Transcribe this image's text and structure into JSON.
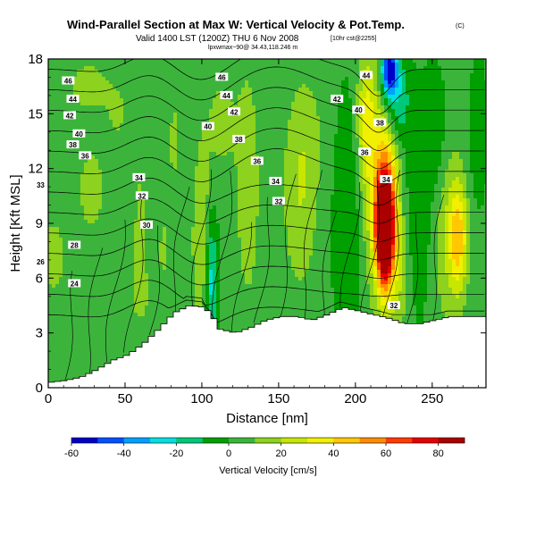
{
  "chart_data": {
    "type": "heatmap",
    "title": "Wind-Parallel Section at Max W: Vertical Velocity & Pot.Temp.",
    "title_mark": "(C)",
    "subtitle": "Valid 1400 LST (1200Z) THU 6 Nov 2008",
    "subtitle_extra": "[10hr cst@2255]",
    "subtitle2": "lpxwmax~90@ 34.43,118.246 m",
    "xlabel": "Distance [nm]",
    "ylabel": "Height [Kft MSL]",
    "xlim": [
      0,
      285
    ],
    "ylim": [
      0,
      18
    ],
    "x_ticks": [
      0,
      50,
      100,
      150,
      200,
      250
    ],
    "y_ticks": [
      0,
      3,
      6,
      9,
      12,
      15,
      18
    ],
    "colorbar": {
      "label": "Vertical Velocity [cm/s]",
      "ticks": [
        -60,
        -40,
        -20,
        0,
        20,
        40,
        60,
        80
      ],
      "range": [
        -60,
        90
      ],
      "colors": [
        "#0000c8",
        "#0050ff",
        "#00a0ff",
        "#00e0e0",
        "#00c878",
        "#00a000",
        "#3cb43c",
        "#8cd21e",
        "#c8e600",
        "#f0f000",
        "#ffc800",
        "#ff8c00",
        "#ff3c00",
        "#e60000",
        "#aa0000"
      ]
    },
    "theta_labels": [
      {
        "value": "46",
        "x": 13,
        "y": 16.8
      },
      {
        "value": "44",
        "x": 16,
        "y": 15.8
      },
      {
        "value": "42",
        "x": 14,
        "y": 14.9
      },
      {
        "value": "40",
        "x": 20,
        "y": 13.9
      },
      {
        "value": "38",
        "x": 16,
        "y": 13.3
      },
      {
        "value": "36",
        "x": 24,
        "y": 12.7
      },
      {
        "value": "33",
        "x": -5,
        "y": 11.1
      },
      {
        "value": "34",
        "x": 59,
        "y": 11.5
      },
      {
        "value": "32",
        "x": 61,
        "y": 10.5
      },
      {
        "value": "30",
        "x": 64,
        "y": 8.9
      },
      {
        "value": "28",
        "x": 17,
        "y": 7.8
      },
      {
        "value": "26",
        "x": -5,
        "y": 6.9
      },
      {
        "value": "24",
        "x": 17,
        "y": 5.7
      },
      {
        "value": "46",
        "x": 113,
        "y": 17.0
      },
      {
        "value": "44",
        "x": 116,
        "y": 16.0
      },
      {
        "value": "42",
        "x": 121,
        "y": 15.1
      },
      {
        "value": "40",
        "x": 104,
        "y": 14.3
      },
      {
        "value": "38",
        "x": 124,
        "y": 13.6
      },
      {
        "value": "36",
        "x": 136,
        "y": 12.4
      },
      {
        "value": "34",
        "x": 148,
        "y": 11.3
      },
      {
        "value": "32",
        "x": 150,
        "y": 10.2
      },
      {
        "value": "44",
        "x": 207,
        "y": 17.1
      },
      {
        "value": "42",
        "x": 188,
        "y": 15.8
      },
      {
        "value": "40",
        "x": 202,
        "y": 15.2
      },
      {
        "value": "38",
        "x": 216,
        "y": 14.5
      },
      {
        "value": "36",
        "x": 206,
        "y": 12.9
      },
      {
        "value": "34",
        "x": 220,
        "y": 11.4
      },
      {
        "value": "32",
        "x": 225,
        "y": 4.5
      }
    ],
    "terrain": [
      [
        0,
        0.3
      ],
      [
        10,
        0.4
      ],
      [
        20,
        0.6
      ],
      [
        30,
        1.0
      ],
      [
        40,
        1.5
      ],
      [
        50,
        1.8
      ],
      [
        60,
        2.4
      ],
      [
        70,
        3.2
      ],
      [
        80,
        4.1
      ],
      [
        90,
        4.5
      ],
      [
        100,
        4.4
      ],
      [
        105,
        3.9
      ],
      [
        110,
        3.2
      ],
      [
        120,
        3.0
      ],
      [
        130,
        3.3
      ],
      [
        140,
        3.7
      ],
      [
        150,
        3.9
      ],
      [
        160,
        3.9
      ],
      [
        170,
        3.7
      ],
      [
        180,
        4.0
      ],
      [
        190,
        4.4
      ],
      [
        200,
        4.2
      ],
      [
        210,
        4.0
      ],
      [
        220,
        3.8
      ],
      [
        230,
        3.5
      ],
      [
        240,
        3.5
      ],
      [
        250,
        3.7
      ],
      [
        260,
        3.9
      ],
      [
        270,
        3.9
      ],
      [
        285,
        3.9
      ]
    ],
    "w_cells": [
      {
        "x": 219,
        "y": 8.6,
        "sx": 5,
        "sy": 2.6,
        "w": 95
      },
      {
        "x": 220,
        "y": 9.5,
        "sx": 8,
        "sy": 4.5,
        "w": 50
      },
      {
        "x": 214,
        "y": 11.0,
        "sx": 12,
        "sy": 5.5,
        "w": 20
      },
      {
        "x": 222,
        "y": 17.4,
        "sx": 5,
        "sy": 1.4,
        "w": -60
      },
      {
        "x": 227,
        "y": 15.8,
        "sx": 8,
        "sy": 2.5,
        "w": -25
      },
      {
        "x": 207,
        "y": 15.0,
        "sx": 6,
        "sy": 3.5,
        "w": 25
      },
      {
        "x": 267,
        "y": 8.2,
        "sx": 6,
        "sy": 3.0,
        "w": 40
      },
      {
        "x": 259,
        "y": 8.7,
        "sx": 9,
        "sy": 5.5,
        "w": 14
      },
      {
        "x": 240,
        "y": 9.4,
        "sx": 9,
        "sy": 5.5,
        "w": -12
      },
      {
        "x": 252,
        "y": 13.8,
        "sx": 8,
        "sy": 3.5,
        "w": -14
      },
      {
        "x": 196,
        "y": 9.0,
        "sx": 10,
        "sy": 7.0,
        "w": -14
      },
      {
        "x": 164,
        "y": 10.5,
        "sx": 11,
        "sy": 5.0,
        "w": 16
      },
      {
        "x": 170,
        "y": 14.2,
        "sx": 12,
        "sy": 3.5,
        "w": 6
      },
      {
        "x": 130,
        "y": 11.0,
        "sx": 7,
        "sy": 6.0,
        "w": 16
      },
      {
        "x": 100,
        "y": 8.0,
        "sx": 6,
        "sy": 5.0,
        "w": 18
      },
      {
        "x": 106,
        "y": 6.0,
        "sx": 4,
        "sy": 3.5,
        "w": -30
      },
      {
        "x": 113,
        "y": 14.5,
        "sx": 11,
        "sy": 3.0,
        "w": 10
      },
      {
        "x": 82,
        "y": 13.5,
        "sx": 6,
        "sy": 4.5,
        "w": 8
      },
      {
        "x": 60,
        "y": 9.0,
        "sx": 5,
        "sy": 3.5,
        "w": 10
      },
      {
        "x": 75,
        "y": 7.5,
        "sx": 5,
        "sy": 2.5,
        "w": 8
      },
      {
        "x": 28,
        "y": 10.8,
        "sx": 8,
        "sy": 2.3,
        "w": 14
      },
      {
        "x": 26,
        "y": 16.5,
        "sx": 12,
        "sy": 1.3,
        "w": 14
      },
      {
        "x": 45,
        "y": 15.0,
        "sx": 10,
        "sy": 2.2,
        "w": 8
      },
      {
        "x": 3,
        "y": 7.2,
        "sx": 8,
        "sy": 2.0,
        "w": 14
      },
      {
        "x": 60,
        "y": 5.0,
        "sx": 8,
        "sy": 2.0,
        "w": 8
      },
      {
        "x": 280,
        "y": 14.0,
        "sx": 6,
        "sy": 4.0,
        "w": -10
      },
      {
        "x": 230,
        "y": 6.0,
        "sx": 7,
        "sy": 3.0,
        "w": 12
      }
    ],
    "w_background": 3,
    "theta_levels": [
      24,
      26,
      28,
      30,
      32,
      33,
      34,
      36,
      38,
      40,
      42,
      44,
      46
    ]
  }
}
